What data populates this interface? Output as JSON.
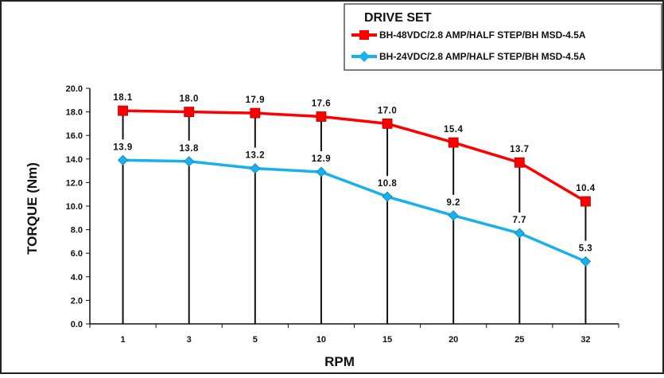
{
  "chart_data": {
    "type": "line",
    "categories": [
      "1",
      "3",
      "5",
      "10",
      "15",
      "20",
      "25",
      "32"
    ],
    "xlabel": "RPM",
    "ylabel": "TORQUE (Nm)",
    "ylim": [
      0,
      20
    ],
    "yticks": [
      "0.0",
      "2.0",
      "4.0",
      "6.0",
      "8.0",
      "10.0",
      "12.0",
      "14.0",
      "16.0",
      "18.0",
      "20.0"
    ],
    "grid": false,
    "legend": {
      "title": "DRIVE SET",
      "placement": "top-right"
    },
    "series": [
      {
        "name": "BH-48VDC/2.8 AMP/HALF STEP/BH MSD-4.5A",
        "color": "#ff0000",
        "marker": "square",
        "values": [
          18.1,
          18.0,
          17.9,
          17.6,
          17.0,
          15.4,
          13.7,
          10.4
        ],
        "labels": [
          "18.1",
          "18.0",
          "17.9",
          "17.6",
          "17.0",
          "15.4",
          "13.7",
          "10.4"
        ]
      },
      {
        "name": "BH-24VDC/2.8 AMP/HALF STEP/BH MSD-4.5A",
        "color": "#1ab0ec",
        "marker": "diamond",
        "values": [
          13.9,
          13.8,
          13.2,
          12.9,
          10.8,
          9.2,
          7.7,
          5.3
        ],
        "labels": [
          "13.9",
          "13.8",
          "13.2",
          "12.9",
          "10.8",
          "9.2",
          "7.7",
          "5.3"
        ]
      }
    ]
  }
}
